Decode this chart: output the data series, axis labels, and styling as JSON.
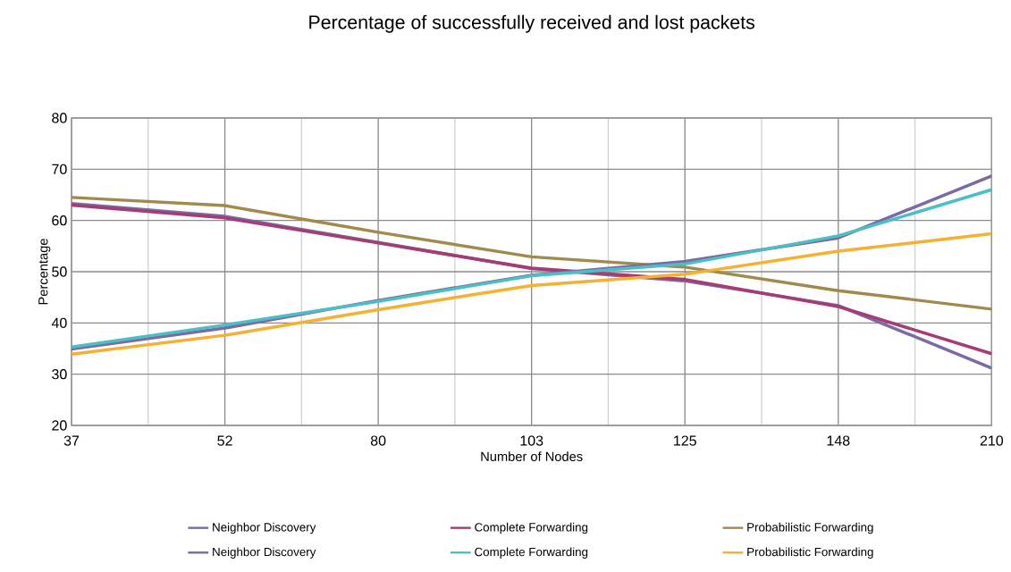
{
  "chart_data": {
    "type": "line",
    "title": "Percentage of successfully received and lost packets",
    "xlabel": "Number of Nodes",
    "ylabel": "Percentage",
    "categories": [
      "37",
      "52",
      "80",
      "103",
      "125",
      "148",
      "210"
    ],
    "ylim": [
      20,
      80
    ],
    "yticks": [
      20,
      30,
      40,
      50,
      60,
      70,
      80
    ],
    "grid": true,
    "legend": "bottom",
    "marker": "none",
    "line_style": "solid",
    "series": [
      {
        "name": "Neighbor Discovery",
        "color": "#7a6aa6",
        "values": [
          63.3,
          60.8,
          55.7,
          50.6,
          48.2,
          43.4,
          31.2
        ]
      },
      {
        "name": "Complete Forwarding",
        "color": "#a63c74",
        "values": [
          63.0,
          60.5,
          55.6,
          50.7,
          48.5,
          43.2,
          34.0
        ]
      },
      {
        "name": "Probabilistic Forwarding",
        "color": "#a08a4c",
        "values": [
          64.5,
          62.9,
          57.7,
          52.9,
          50.9,
          46.3,
          42.7
        ]
      },
      {
        "name": "Neighbor Discovery",
        "color": "#7a6aa6",
        "values": [
          34.9,
          39.0,
          44.4,
          49.3,
          52.0,
          56.6,
          68.7
        ]
      },
      {
        "name": "Complete Forwarding",
        "color": "#4bbfc4",
        "values": [
          35.3,
          39.6,
          44.2,
          49.2,
          51.5,
          57.0,
          66.0
        ]
      },
      {
        "name": "Probabilistic Forwarding",
        "color": "#f7b030",
        "values": [
          33.9,
          37.6,
          42.6,
          47.3,
          49.5,
          54.0,
          57.4
        ]
      }
    ]
  }
}
